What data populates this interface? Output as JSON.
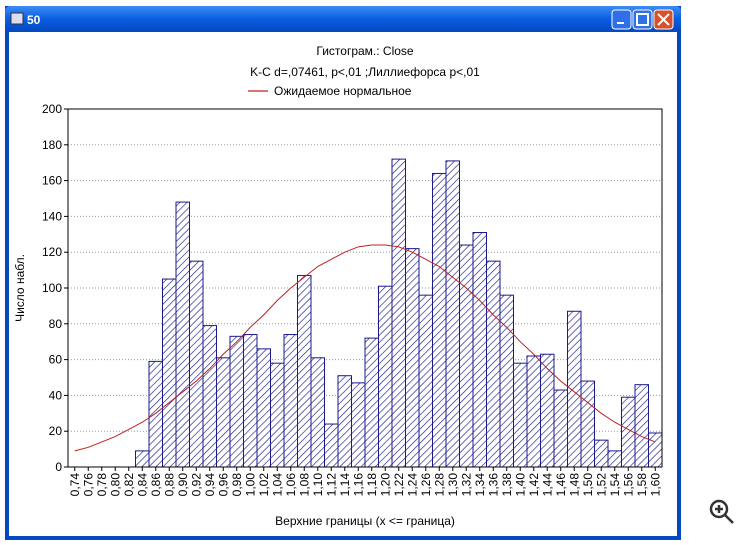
{
  "window": {
    "title": "50"
  },
  "chart_data": {
    "type": "bar",
    "title": "Гистограм.: Close",
    "subtitle": "K-C d=,07461, p<,01 ;Лиллиефорса p<,01",
    "xlabel": "Верхние границы (x <= граница)",
    "ylabel": "Число набл.",
    "categories": [
      "0,74",
      "0,76",
      "0,78",
      "0,80",
      "0,82",
      "0,84",
      "0,86",
      "0,88",
      "0,90",
      "0,92",
      "0,94",
      "0,96",
      "0,98",
      "1,00",
      "1,02",
      "1,04",
      "1,06",
      "1,08",
      "1,10",
      "1,12",
      "1,14",
      "1,16",
      "1,18",
      "1,20",
      "1,22",
      "1,24",
      "1,26",
      "1,28",
      "1,30",
      "1,32",
      "1,34",
      "1,36",
      "1,38",
      "1,40",
      "1,42",
      "1,44",
      "1,46",
      "1,48",
      "1,50",
      "1,52",
      "1,54",
      "1,56",
      "1,58",
      "1,60"
    ],
    "values": [
      0,
      0,
      0,
      0,
      0,
      9,
      59,
      105,
      148,
      115,
      79,
      61,
      73,
      74,
      66,
      58,
      74,
      107,
      61,
      24,
      51,
      47,
      72,
      101,
      172,
      122,
      96,
      164,
      171,
      124,
      131,
      115,
      96,
      58,
      62,
      63,
      43,
      87,
      48,
      15,
      9,
      39,
      46,
      19
    ],
    "color": "#1a1a8c",
    "series": [
      {
        "name": "Ожидаемое нормальное",
        "type": "line",
        "color": "#c02020",
        "values": [
          9,
          11,
          14,
          17,
          21,
          25,
          30,
          36,
          42,
          48,
          55,
          63,
          70,
          78,
          85,
          93,
          100,
          106,
          112,
          116,
          120,
          123,
          124,
          124,
          123,
          120,
          116,
          112,
          106,
          100,
          93,
          85,
          78,
          70,
          63,
          55,
          48,
          42,
          36,
          30,
          25,
          21,
          17,
          14
        ]
      }
    ],
    "ylim": [
      0,
      200
    ],
    "yticks": [
      0,
      20,
      40,
      60,
      80,
      100,
      120,
      140,
      160,
      180,
      200
    ],
    "grid": true
  }
}
